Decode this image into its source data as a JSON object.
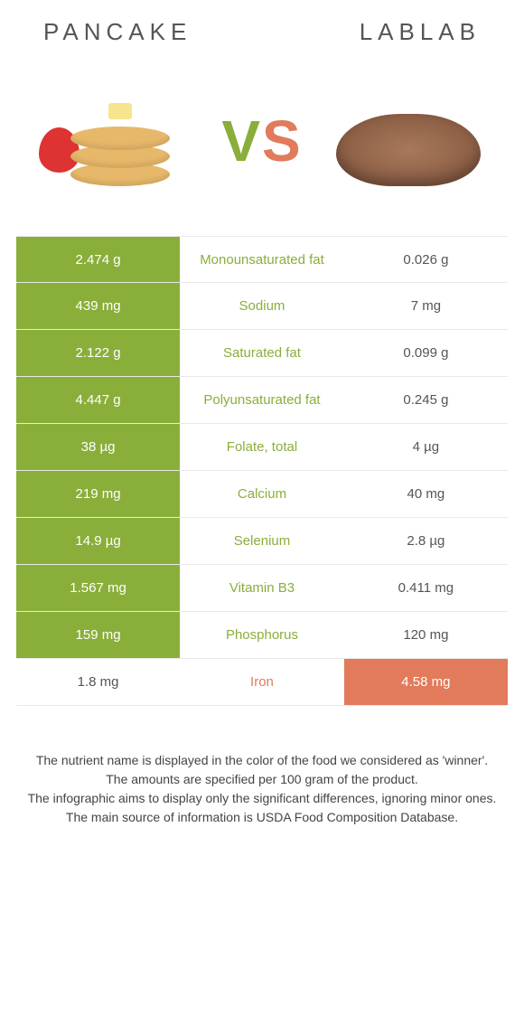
{
  "colors": {
    "green": "#8aae3a",
    "orange": "#e17b5c",
    "text": "#555"
  },
  "left_title": "PANCAKE",
  "right_title": "LABLAB",
  "vs_v": "V",
  "vs_s": "S",
  "rows": [
    {
      "nutrient": "Monounsaturated fat",
      "left": "2.474 g",
      "right": "0.026 g",
      "winner": "left"
    },
    {
      "nutrient": "Sodium",
      "left": "439 mg",
      "right": "7 mg",
      "winner": "left"
    },
    {
      "nutrient": "Saturated fat",
      "left": "2.122 g",
      "right": "0.099 g",
      "winner": "left"
    },
    {
      "nutrient": "Polyunsaturated fat",
      "left": "4.447 g",
      "right": "0.245 g",
      "winner": "left"
    },
    {
      "nutrient": "Folate, total",
      "left": "38 µg",
      "right": "4 µg",
      "winner": "left"
    },
    {
      "nutrient": "Calcium",
      "left": "219 mg",
      "right": "40 mg",
      "winner": "left"
    },
    {
      "nutrient": "Selenium",
      "left": "14.9 µg",
      "right": "2.8 µg",
      "winner": "left"
    },
    {
      "nutrient": "Vitamin B3",
      "left": "1.567 mg",
      "right": "0.411 mg",
      "winner": "left"
    },
    {
      "nutrient": "Phosphorus",
      "left": "159 mg",
      "right": "120 mg",
      "winner": "left"
    },
    {
      "nutrient": "Iron",
      "left": "1.8 mg",
      "right": "4.58 mg",
      "winner": "right"
    }
  ],
  "footnotes": [
    "The nutrient name is displayed in the color of the food we considered as 'winner'.",
    "The amounts are specified per 100 gram of the product.",
    "The infographic aims to display only the significant differences, ignoring minor ones.",
    "The main source of information is USDA Food Composition Database."
  ]
}
